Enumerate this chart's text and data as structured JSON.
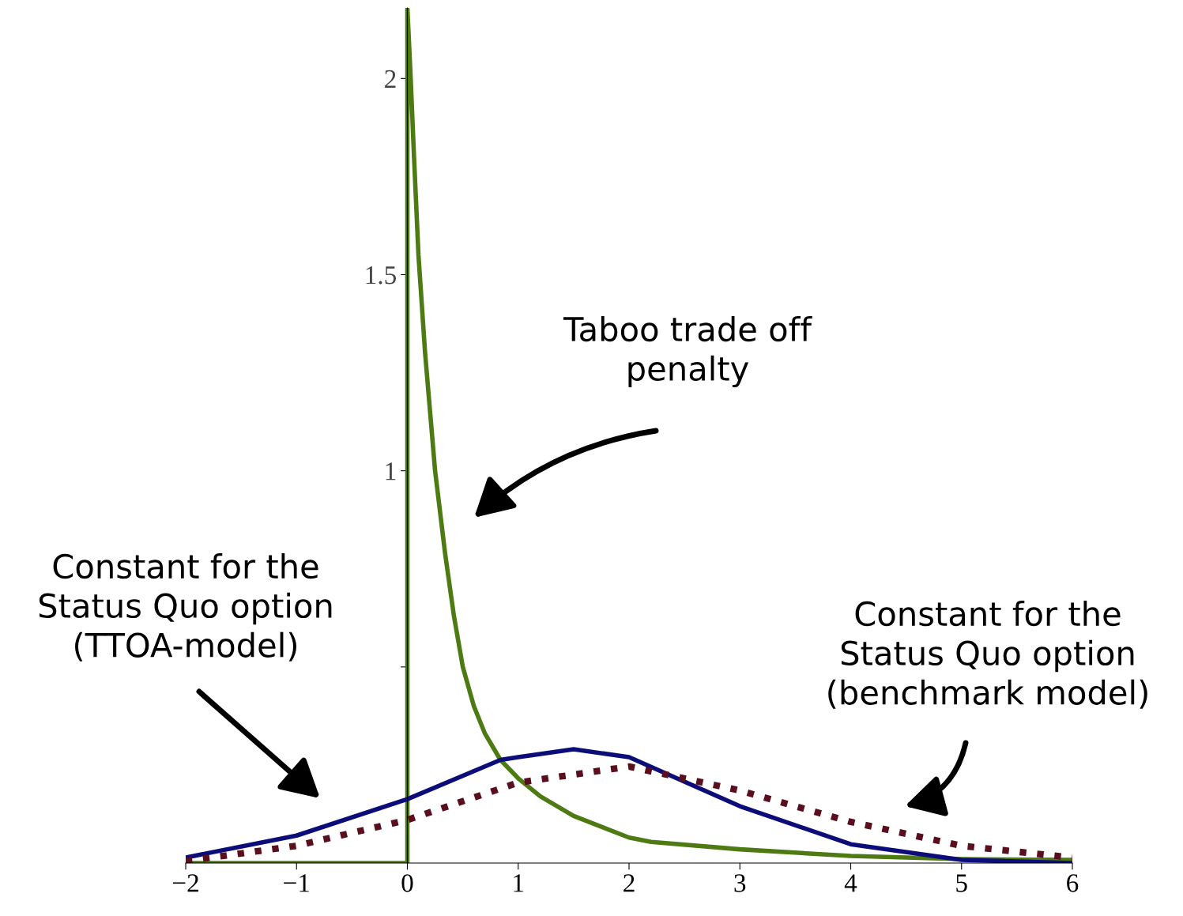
{
  "chart_data": {
    "type": "line",
    "xlim": [
      -2,
      6
    ],
    "ylim": [
      0,
      2.18
    ],
    "xticks": [
      {
        "value": -2,
        "label": "−2"
      },
      {
        "value": -1,
        "label": "−1"
      },
      0,
      1,
      2,
      3,
      4,
      5,
      6
    ],
    "yticks": [
      {
        "value": 0.5,
        "label": null
      },
      1,
      1.5,
      2
    ],
    "grid": false,
    "legend": false,
    "series": [
      {
        "color": "#4d7a12",
        "line_style": "solid",
        "x": [
          -2,
          0,
          0,
          0.03,
          0.06,
          0.1,
          0.16,
          0.25,
          0.34,
          0.42,
          0.5,
          0.6,
          0.7,
          0.84,
          1,
          1.2,
          1.5,
          2,
          2.2,
          3,
          4,
          5,
          6
        ],
        "values": [
          0,
          0,
          2.18,
          2.0,
          1.8,
          1.55,
          1.3,
          1.0,
          0.79,
          0.63,
          0.5,
          0.4,
          0.33,
          0.263,
          0.216,
          0.17,
          0.12,
          0.065,
          0.054,
          0.035,
          0.018,
          0.01,
          0.008
        ]
      },
      {
        "color": "#0d0d7a",
        "line_style": "solid",
        "x": [
          -2,
          -1,
          0,
          0.84,
          1,
          1.5,
          2,
          3,
          4,
          5,
          6
        ],
        "values": [
          0.014,
          0.07,
          0.163,
          0.263,
          0.27,
          0.29,
          0.27,
          0.145,
          0.048,
          0.008,
          0
        ]
      },
      {
        "color": "#5a0f1e",
        "line_style": "dotted",
        "x": [
          -2,
          -1,
          0,
          1,
          2,
          3,
          4,
          5,
          6
        ],
        "values": [
          0.005,
          0.044,
          0.11,
          0.205,
          0.246,
          0.185,
          0.105,
          0.044,
          0.014
        ]
      }
    ],
    "annotations": [
      "Taboo trade off\npenalty",
      "Constant for the\nStatus Quo option\n(TTOA-model)",
      "Constant for the\nStatus Quo option\n(benchmark model)"
    ]
  }
}
